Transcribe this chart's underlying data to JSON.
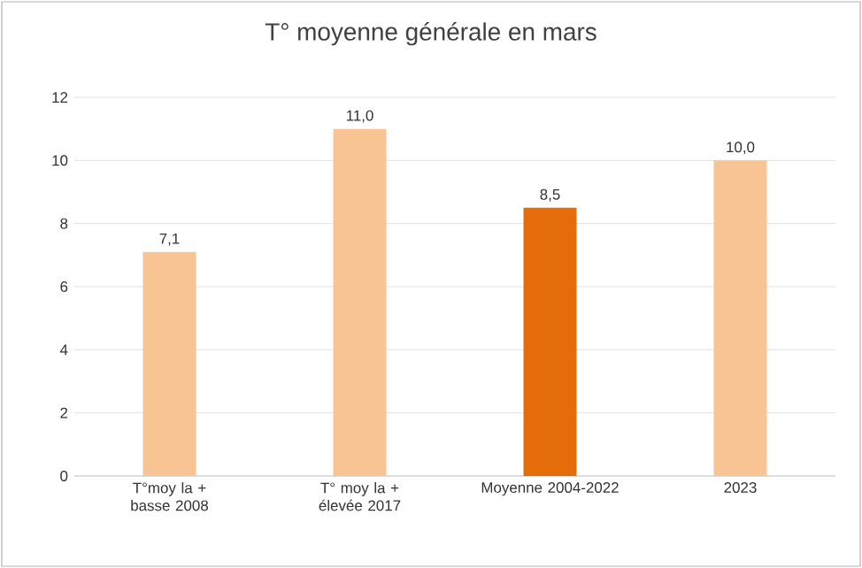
{
  "chart_data": {
    "type": "bar",
    "title": "T° moyenne générale en mars",
    "categories": [
      "T°moy la + basse 2008",
      "T° moy la + élevée 2017",
      "Moyenne 2004-2022",
      "2023"
    ],
    "values": [
      7.1,
      11.0,
      8.5,
      10.0
    ],
    "value_labels": [
      "7,1",
      "11,0",
      "8,5",
      "10,0"
    ],
    "colors": [
      "#f8c493",
      "#f8c493",
      "#e46c0a",
      "#f8c493"
    ],
    "ylim": [
      0,
      12
    ],
    "yticks": [
      0,
      2,
      4,
      6,
      8,
      10,
      12
    ],
    "grid": "y"
  }
}
